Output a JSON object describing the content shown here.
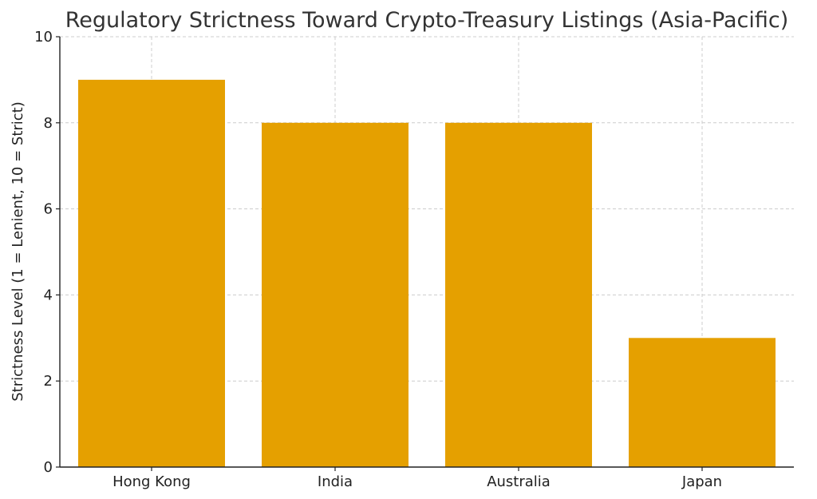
{
  "chart_data": {
    "type": "bar",
    "title": "Regulatory Strictness Toward Crypto-Treasury Listings (Asia-Pacific)",
    "xlabel": "",
    "ylabel": "Strictness Level (1 = Lenient, 10 = Strict)",
    "categories": [
      "Hong Kong",
      "India",
      "Australia",
      "Japan"
    ],
    "values": [
      9,
      8,
      8,
      3
    ],
    "ylim": [
      0,
      10
    ],
    "yticks": [
      "0",
      "2",
      "4",
      "6",
      "8",
      "10"
    ],
    "grid": true,
    "bar_color": "#e5a000"
  }
}
